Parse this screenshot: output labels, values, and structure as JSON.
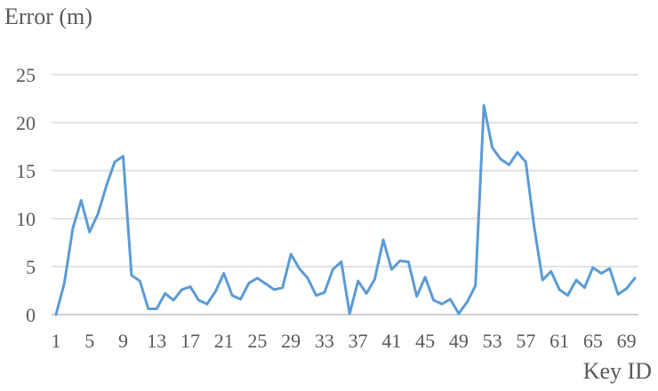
{
  "chart_data": {
    "type": "line",
    "ylabel": "Error (m)",
    "xlabel": "Key ID",
    "ylim": [
      0,
      25
    ],
    "yticks": [
      0,
      5,
      10,
      15,
      20,
      25
    ],
    "xticks": [
      1,
      5,
      9,
      13,
      17,
      21,
      25,
      29,
      33,
      37,
      41,
      45,
      49,
      53,
      57,
      61,
      65,
      69
    ],
    "grid": true,
    "legend": "none",
    "line_color": "#5b9bd5",
    "x": [
      1,
      2,
      3,
      4,
      5,
      6,
      7,
      8,
      9,
      10,
      11,
      12,
      13,
      14,
      15,
      16,
      17,
      18,
      19,
      20,
      21,
      22,
      23,
      24,
      25,
      26,
      27,
      28,
      29,
      30,
      31,
      32,
      33,
      34,
      35,
      36,
      37,
      38,
      39,
      40,
      41,
      42,
      43,
      44,
      45,
      46,
      47,
      48,
      49,
      50,
      51,
      52,
      53,
      54,
      55,
      56,
      57,
      58,
      59,
      60,
      61,
      62,
      63,
      64,
      65,
      66,
      67,
      68,
      69,
      70
    ],
    "series": [
      {
        "values": [
          0.0,
          3.3,
          9.0,
          11.9,
          8.6,
          10.5,
          13.4,
          15.9,
          16.5,
          4.1,
          3.5,
          0.6,
          0.6,
          2.2,
          1.5,
          2.6,
          2.9,
          1.5,
          1.1,
          2.4,
          4.3,
          2.0,
          1.6,
          3.3,
          3.8,
          3.2,
          2.6,
          2.8,
          6.3,
          4.8,
          3.8,
          2.0,
          2.3,
          4.7,
          5.5,
          0.1,
          3.5,
          2.2,
          3.7,
          7.8,
          4.7,
          5.6,
          5.5,
          1.9,
          3.9,
          1.5,
          1.1,
          1.6,
          0.1,
          1.3,
          3.0,
          21.8,
          17.4,
          16.2,
          15.6,
          16.9,
          15.9,
          9.1,
          3.6,
          4.5,
          2.6,
          2.0,
          3.6,
          2.8,
          4.9,
          4.3,
          4.8,
          2.1,
          2.7,
          3.8
        ]
      }
    ]
  }
}
